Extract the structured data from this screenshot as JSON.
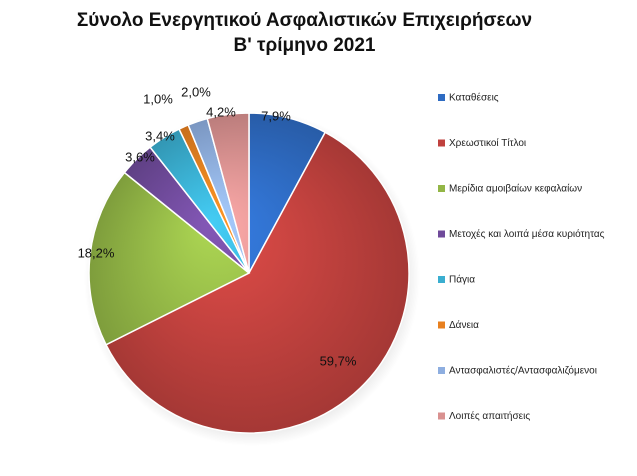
{
  "chart_data": {
    "type": "pie",
    "title": "Σύνολο Ενεργητικού Ασφαλιστικών Επιχειρήσεων",
    "subtitle": "Β' τρίμηνο 2021",
    "legend_position": "right",
    "slices": [
      {
        "label": "Καταθέσεις",
        "value": 7.9,
        "display": "7,9%",
        "color": "#2e6bc2"
      },
      {
        "label": "Χρεωστικοί Τίτλοι",
        "value": 59.7,
        "display": "59,7%",
        "color": "#c0413e"
      },
      {
        "label": "Μερίδια αμοιβαίων κεφαλαίων",
        "value": 18.2,
        "display": "18,2%",
        "color": "#93b646"
      },
      {
        "label": "Μετοχές και λοιπά μέσα κυριότητας",
        "value": 3.6,
        "display": "3,6%",
        "color": "#6f4a9a"
      },
      {
        "label": "Πάγια",
        "value": 3.4,
        "display": "3,4%",
        "color": "#3aaed0"
      },
      {
        "label": "Δάνεια",
        "value": 1.0,
        "display": "1,0%",
        "color": "#e8801f"
      },
      {
        "label": "Αντασφαλιστές/Αντασφαλιζόμενοι",
        "value": 2.0,
        "display": "2,0%",
        "color": "#8eaee0"
      },
      {
        "label": "Λοιπές απαιτήσεις",
        "value": 4.2,
        "display": "4,2%",
        "color": "#d99190"
      }
    ]
  }
}
